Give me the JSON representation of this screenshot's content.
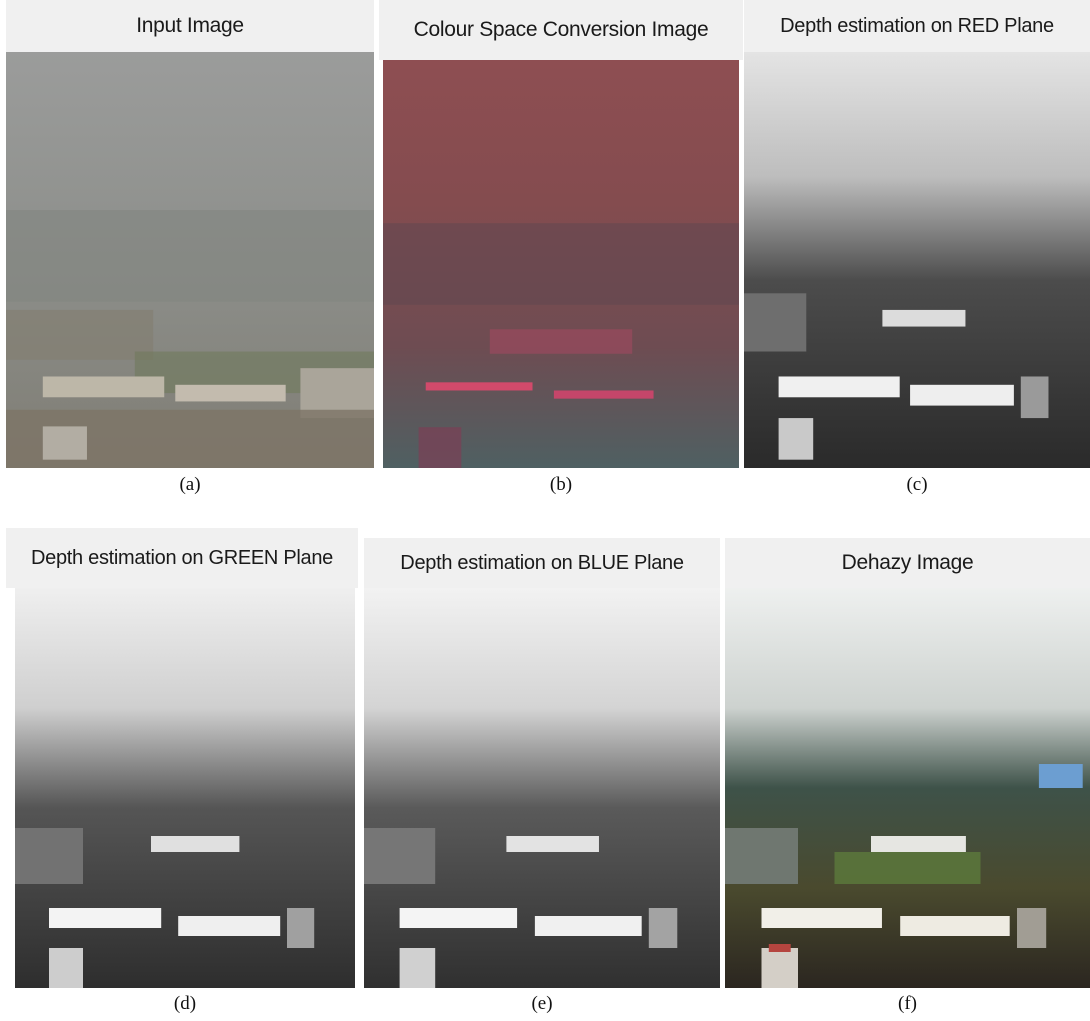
{
  "panels": [
    {
      "title": "Input Image",
      "caption": "(a)",
      "style": "hazy"
    },
    {
      "title": "Colour Space Conversion Image",
      "caption": "(b)",
      "style": "colourspace"
    },
    {
      "title": "Depth estimation on RED Plane",
      "caption": "(c)",
      "style": "gray"
    },
    {
      "title": "Depth estimation on GREEN Plane",
      "caption": "(d)",
      "style": "gray"
    },
    {
      "title": "Depth estimation on BLUE Plane",
      "caption": "(e)",
      "style": "gray"
    },
    {
      "title": "Dehazy Image",
      "caption": "(f)",
      "style": "dehazed"
    }
  ]
}
